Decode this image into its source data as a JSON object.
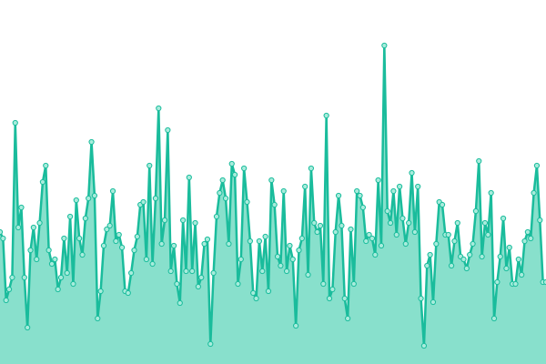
{
  "chart_data": {
    "type": "area",
    "color": "#1abc9c",
    "area_color": "#88e0cc",
    "marker_fill": "#a8ecdc",
    "ylim": [
      0,
      400
    ],
    "values": [
      145,
      138,
      70,
      82,
      95,
      265,
      150,
      172,
      95,
      40,
      125,
      150,
      115,
      155,
      200,
      218,
      125,
      110,
      115,
      82,
      95,
      138,
      100,
      162,
      88,
      180,
      138,
      120,
      160,
      182,
      244,
      185,
      50,
      80,
      130,
      148,
      152,
      190,
      135,
      142,
      128,
      80,
      78,
      100,
      125,
      140,
      175,
      178,
      115,
      218,
      110,
      182,
      281,
      132,
      158,
      257,
      102,
      130,
      88,
      67,
      158,
      102,
      205,
      102,
      155,
      85,
      95,
      132,
      137,
      22,
      100,
      162,
      188,
      202,
      182,
      132,
      220,
      208,
      88,
      115,
      215,
      178,
      135,
      78,
      72,
      135,
      102,
      140,
      80,
      202,
      175,
      118,
      108,
      190,
      102,
      130,
      115,
      42,
      125,
      138,
      195,
      98,
      215,
      155,
      145,
      152,
      88,
      273,
      72,
      82,
      145,
      185,
      152,
      72,
      50,
      148,
      88,
      190,
      185,
      172,
      135,
      142,
      138,
      120,
      202,
      130,
      350,
      168,
      155,
      190,
      142,
      195,
      160,
      132,
      155,
      210,
      145,
      195,
      72,
      20,
      108,
      120,
      68,
      132,
      178,
      175,
      142,
      142,
      108,
      135,
      155,
      118,
      115,
      105,
      120,
      132,
      168,
      223,
      118,
      155,
      142,
      188,
      50,
      90,
      118,
      160,
      105,
      128,
      88,
      88,
      115,
      98,
      135,
      145,
      138,
      188,
      218,
      158,
      90,
      90
    ]
  }
}
